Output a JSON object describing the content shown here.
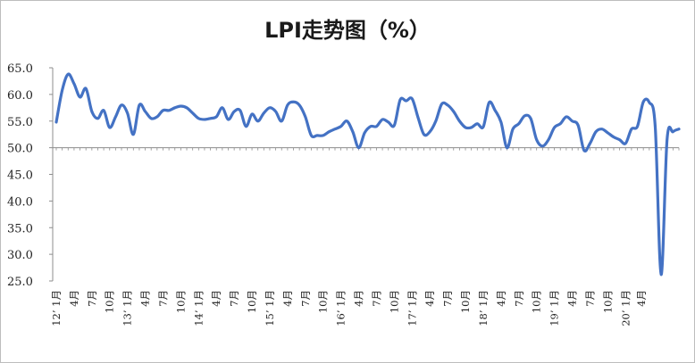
{
  "chart_data": {
    "type": "line",
    "title": "LPI走势图（%）",
    "xlabel": "",
    "ylabel": "",
    "ylim": [
      25,
      65
    ],
    "yticks": [
      "25.0",
      "30.0",
      "35.0",
      "40.0",
      "45.0",
      "50.0",
      "55.0",
      "60.0",
      "65.0"
    ],
    "grid": false,
    "legend": "none",
    "reference_line": 50,
    "line_color": "#4472C4",
    "x_labels": [
      "12’ 1月",
      "4月",
      "7月",
      "10月",
      "13’ 1月",
      "4月",
      "7月",
      "10月",
      "14’ 1月",
      "4月",
      "7月",
      "10月",
      "15’ 1月",
      "4月",
      "7月",
      "10月",
      "16’ 1月",
      "4月",
      "7月",
      "10月",
      "17’ 1月",
      "4月",
      "7月",
      "10月",
      "18’ 1月",
      "4月",
      "7月",
      "10月",
      "19’ 1月",
      "4月",
      "7月",
      "10月",
      "20’ 1月",
      "4月"
    ],
    "series": [
      {
        "values": [
          54.8,
          60.8,
          63.8,
          62.0,
          59.5,
          61.1,
          56.8,
          55.5,
          57.0,
          53.8,
          55.8,
          58.0,
          56.5,
          52.5,
          58.0,
          56.8,
          55.5,
          55.8,
          57.0,
          57.0,
          57.5,
          57.8,
          57.5,
          56.5,
          55.5,
          55.3,
          55.5,
          55.8,
          57.5,
          55.3,
          56.8,
          57.0,
          54.0,
          56.3,
          55.0,
          56.5,
          57.5,
          56.8,
          55.0,
          58.0,
          58.6,
          58.0,
          55.8,
          52.3,
          52.3,
          52.3,
          53.0,
          53.5,
          54.0,
          55.0,
          53.0,
          50.0,
          52.8,
          54.0,
          54.0,
          55.3,
          54.8,
          54.2,
          59.0,
          58.8,
          59.2,
          55.7,
          52.5,
          53.0,
          55.0,
          58.2,
          58.0,
          56.8,
          55.0,
          53.8,
          53.8,
          54.5,
          53.9,
          58.5,
          57.0,
          54.8,
          50.0,
          53.5,
          54.5,
          56.0,
          55.5,
          51.5,
          50.3,
          51.5,
          53.8,
          54.5,
          55.8,
          55.0,
          54.2,
          49.5,
          50.8,
          53.0,
          53.5,
          52.8,
          52.0,
          51.5,
          50.8,
          53.5,
          54.0,
          58.6,
          58.5,
          54.0,
          26.2,
          51.5,
          53.0,
          53.5
        ]
      }
    ]
  }
}
